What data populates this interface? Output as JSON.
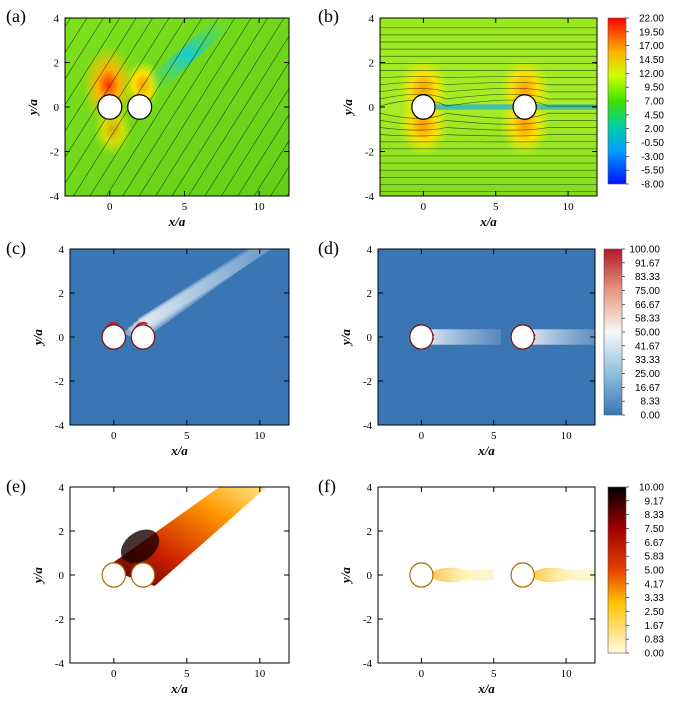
{
  "chart_data": [
    {
      "panel": "(a)",
      "type": "heatmap",
      "field": "velocity",
      "streamlines": true,
      "inclination": "oblique",
      "xlabel": "x/a",
      "ylabel": "y/a",
      "xlim": [
        -3,
        12
      ],
      "ylim": [
        -4,
        4
      ],
      "xticks": [
        "0",
        "5",
        "10"
      ],
      "yticks": [
        "-4",
        "-2",
        "0",
        "2",
        "4"
      ],
      "cylinders": [
        {
          "x": 0,
          "y": 0
        },
        {
          "x": 2,
          "y": 0
        }
      ]
    },
    {
      "panel": "(b)",
      "type": "heatmap",
      "field": "velocity",
      "streamlines": true,
      "inclination": "tandem",
      "xlabel": "x/a",
      "ylabel": "y/a",
      "xlim": [
        -3,
        12
      ],
      "ylim": [
        -4,
        4
      ],
      "xticks": [
        "0",
        "5",
        "10"
      ],
      "yticks": [
        "-4",
        "-2",
        "0",
        "2",
        "4"
      ],
      "cylinders": [
        {
          "x": 0,
          "y": 0
        },
        {
          "x": 7,
          "y": 0
        }
      ],
      "colorbar": {
        "values": [
          "22.00",
          "19.50",
          "17.00",
          "14.50",
          "12.00",
          "9.50",
          "7.00",
          "4.50",
          "2.00",
          "-0.50",
          "-3.00",
          "-5.50",
          "-8.00"
        ],
        "colors": [
          "#ff0000",
          "#ff6600",
          "#ffcc00",
          "#ccff00",
          "#66ff00",
          "#22e000",
          "#00d040",
          "#00c0a0",
          "#00a0e0",
          "#0070ff",
          "#0040ff",
          "#0010ff"
        ]
      }
    },
    {
      "panel": "(c)",
      "type": "heatmap",
      "field": "shear",
      "inclination": "oblique",
      "xlabel": "x/a",
      "ylabel": "y/a",
      "xlim": [
        -3,
        12
      ],
      "ylim": [
        -4,
        4
      ],
      "xticks": [
        "0",
        "5",
        "10"
      ],
      "yticks": [
        "-4",
        "-2",
        "0",
        "2",
        "4"
      ],
      "cylinders": [
        {
          "x": 0,
          "y": 0
        },
        {
          "x": 2,
          "y": 0
        }
      ]
    },
    {
      "panel": "(d)",
      "type": "heatmap",
      "field": "shear",
      "inclination": "tandem",
      "xlabel": "x/a",
      "ylabel": "y/a",
      "xlim": [
        -3,
        12
      ],
      "ylim": [
        -4,
        4
      ],
      "xticks": [
        "0",
        "5",
        "10"
      ],
      "yticks": [
        "-4",
        "-2",
        "0",
        "2",
        "4"
      ],
      "cylinders": [
        {
          "x": 0,
          "y": 0
        },
        {
          "x": 7,
          "y": 0
        }
      ],
      "colorbar": {
        "values": [
          "100.00",
          "91.67",
          "83.33",
          "75.00",
          "66.67",
          "58.33",
          "50.00",
          "41.67",
          "33.33",
          "25.00",
          "16.67",
          "8.33",
          "0.00"
        ],
        "colors": [
          "#b2182b",
          "#d6604d",
          "#e8977e",
          "#f4c2a9",
          "#fae5d9",
          "#f7f7f7",
          "#e5eef5",
          "#c6dbe9",
          "#98c4de",
          "#6ea6cd",
          "#4f90c2",
          "#3a76b3"
        ]
      }
    },
    {
      "panel": "(e)",
      "type": "heatmap",
      "field": "concentration",
      "inclination": "oblique",
      "xlabel": "x/a",
      "ylabel": "y/a",
      "xlim": [
        -3,
        12
      ],
      "ylim": [
        -4,
        4
      ],
      "xticks": [
        "0",
        "5",
        "10"
      ],
      "yticks": [
        "-4",
        "-2",
        "0",
        "2",
        "4"
      ],
      "cylinders": [
        {
          "x": 0,
          "y": 0
        },
        {
          "x": 2,
          "y": 0
        }
      ]
    },
    {
      "panel": "(f)",
      "type": "heatmap",
      "field": "concentration",
      "inclination": "tandem",
      "xlabel": "x/a",
      "ylabel": "y/a",
      "xlim": [
        -3,
        12
      ],
      "ylim": [
        -4,
        4
      ],
      "xticks": [
        "0",
        "5",
        "10"
      ],
      "yticks": [
        "-4",
        "-2",
        "0",
        "2",
        "4"
      ],
      "cylinders": [
        {
          "x": 0,
          "y": 0
        },
        {
          "x": 7,
          "y": 0
        }
      ],
      "colorbar": {
        "values": [
          "10.00",
          "9.17",
          "8.33",
          "7.50",
          "6.67",
          "5.83",
          "5.00",
          "4.17",
          "3.33",
          "2.50",
          "1.67",
          "0.83",
          "0.00"
        ],
        "colors": [
          "#000000",
          "#3a0000",
          "#700000",
          "#a00000",
          "#cc1a00",
          "#e84000",
          "#f56e00",
          "#fb9a00",
          "#ffc400",
          "#ffe040",
          "#fff09a",
          "#fffbe0"
        ]
      }
    }
  ]
}
